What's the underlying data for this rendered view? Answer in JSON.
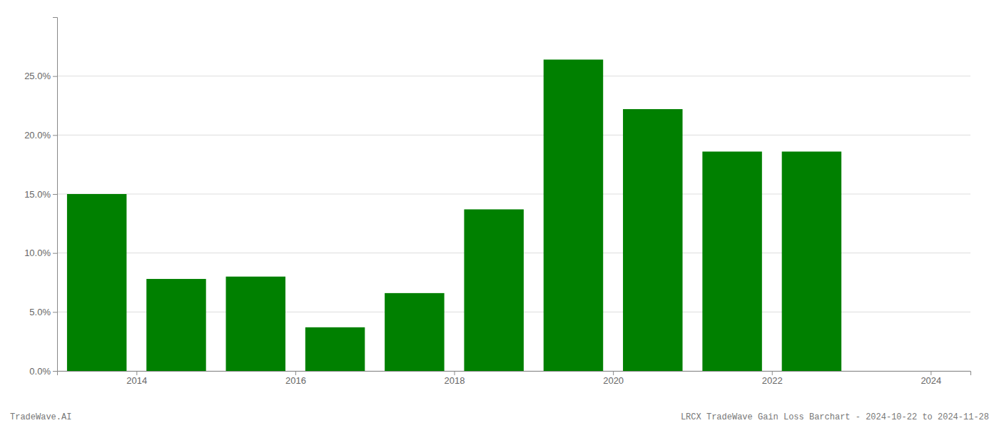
{
  "chart_data": {
    "type": "bar",
    "x": [
      2013.5,
      2014.5,
      2015.5,
      2016.5,
      2017.5,
      2018.5,
      2019.5,
      2020.5,
      2021.5,
      2022.5
    ],
    "values": [
      0.15,
      0.078,
      0.08,
      0.037,
      0.066,
      0.137,
      0.264,
      0.222,
      0.186,
      0.186
    ],
    "color": "#008000",
    "xlim": [
      2013.0,
      2024.5
    ],
    "xticks": [
      2014,
      2016,
      2018,
      2020,
      2022,
      2024
    ],
    "ylim": [
      0,
      0.3
    ],
    "yticks": [
      {
        "value": 0.0,
        "label": "0.0%"
      },
      {
        "value": 0.05,
        "label": "5.0%"
      },
      {
        "value": 0.1,
        "label": "10.0%"
      },
      {
        "value": 0.15,
        "label": "15.0%"
      },
      {
        "value": 0.2,
        "label": "20.0%"
      },
      {
        "value": 0.25,
        "label": "25.0%"
      }
    ],
    "grid": true,
    "annotations": [
      "TradeWave.AI",
      "LRCX TradeWave Gain Loss Barchart - 2024-10-22 to 2024-11-28"
    ]
  }
}
